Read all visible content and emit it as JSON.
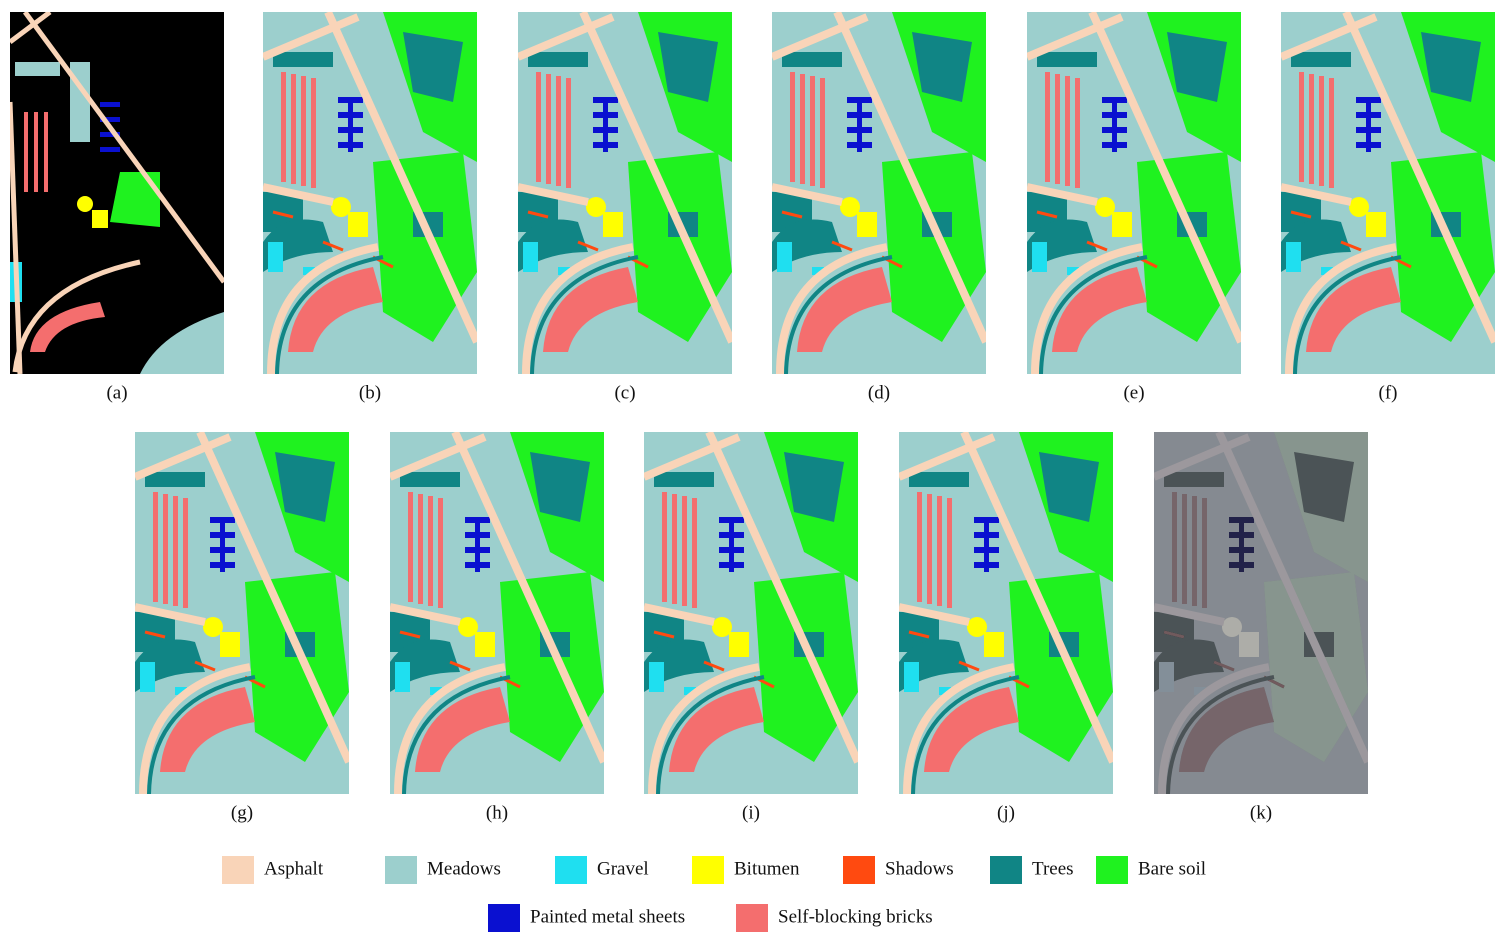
{
  "figure": {
    "panels": [
      "(a)",
      "(b)",
      "(c)",
      "(d)",
      "(e)",
      "(f)",
      "(g)",
      "(h)",
      "(i)",
      "(j)",
      "(k)"
    ],
    "legend": [
      {
        "name": "Asphalt",
        "color": "#f9d4b8"
      },
      {
        "name": "Meadows",
        "color": "#9ccfcd"
      },
      {
        "name": "Gravel",
        "color": "#1fdff0"
      },
      {
        "name": "Bitumen",
        "color": "#ffff00"
      },
      {
        "name": "Shadows",
        "color": "#ff4a10"
      },
      {
        "name": "Trees",
        "color": "#108585"
      },
      {
        "name": "Bare soil",
        "color": "#1ff21f"
      },
      {
        "name": "Painted metal sheets",
        "color": "#0a10d0"
      },
      {
        "name": "Self-blocking bricks",
        "color": "#f46e6e"
      }
    ]
  }
}
